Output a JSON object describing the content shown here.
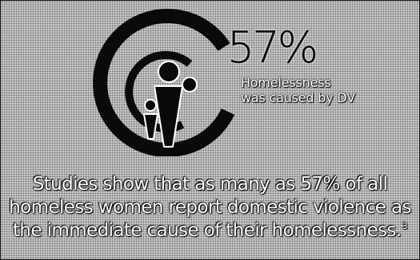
{
  "stat": {
    "value": "57%",
    "caption_line1": "Homelessness",
    "caption_line2": "was caused by DV"
  },
  "body": {
    "line1": "Studies show that as many as 57% of all",
    "line2": "homeless women report domestic violence as",
    "line3": "the immediate cause of their homelessness.",
    "footnote": "3"
  },
  "colors": {
    "background": "#b5b5b5",
    "ink": "#0a0a0a",
    "text": "#ffffff"
  }
}
